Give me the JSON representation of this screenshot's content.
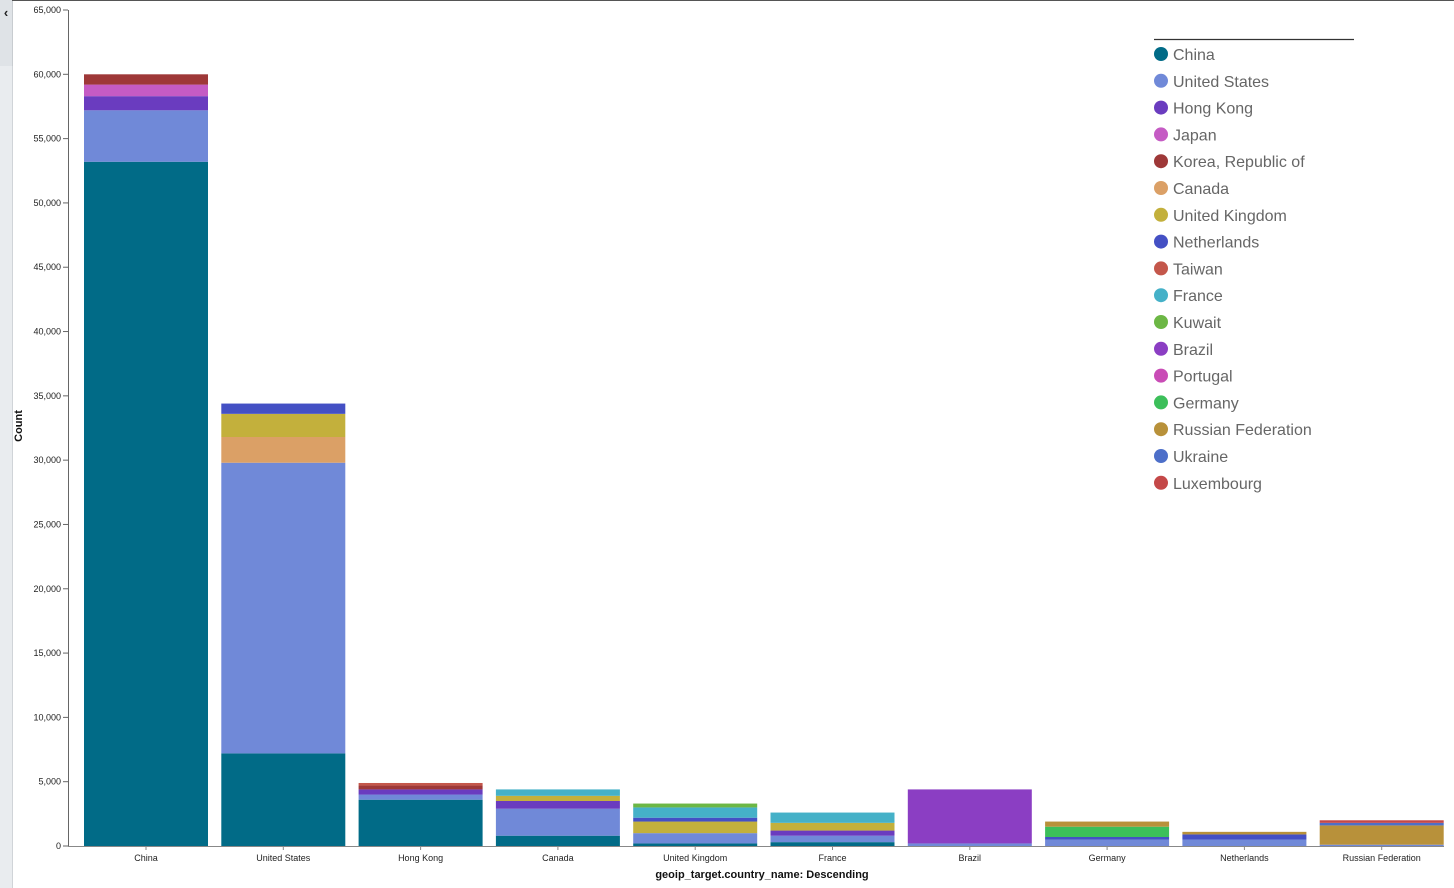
{
  "chart_data": {
    "type": "bar",
    "stacked": true,
    "xlabel": "geoip_target.country_name: Descending",
    "ylabel": "Count",
    "ylim": [
      0,
      65000
    ],
    "yticks": [
      0,
      5000,
      10000,
      15000,
      20000,
      25000,
      30000,
      35000,
      40000,
      45000,
      50000,
      55000,
      60000,
      65000
    ],
    "ytick_labels": [
      "0",
      "5,000",
      "10,000",
      "15,000",
      "20,000",
      "25,000",
      "30,000",
      "35,000",
      "40,000",
      "45,000",
      "50,000",
      "55,000",
      "60,000",
      "65,000"
    ],
    "grid": false,
    "legend_position": "top-right",
    "categories": [
      "China",
      "United States",
      "Hong Kong",
      "Canada",
      "United Kingdom",
      "France",
      "Brazil",
      "Germany",
      "Netherlands",
      "Russian Federation"
    ],
    "series": [
      {
        "name": "China",
        "color": "#016b87",
        "values": [
          53200,
          7200,
          3600,
          800,
          200,
          300,
          0,
          0,
          0,
          0
        ]
      },
      {
        "name": "United States",
        "color": "#7089d8",
        "values": [
          4000,
          22600,
          400,
          2100,
          800,
          500,
          200,
          500,
          500,
          100
        ]
      },
      {
        "name": "Hong Kong",
        "color": "#6a3cbf",
        "values": [
          1100,
          0,
          400,
          600,
          0,
          400,
          0,
          0,
          0,
          0
        ]
      },
      {
        "name": "Japan",
        "color": "#c55bc4",
        "values": [
          900,
          0,
          0,
          0,
          0,
          0,
          0,
          0,
          0,
          0
        ]
      },
      {
        "name": "Korea, Republic of",
        "color": "#9e3838",
        "values": [
          800,
          0,
          300,
          0,
          0,
          0,
          0,
          0,
          0,
          0
        ]
      },
      {
        "name": "Canada",
        "color": "#dba066",
        "values": [
          0,
          2000,
          0,
          0,
          0,
          0,
          0,
          0,
          0,
          0
        ]
      },
      {
        "name": "United Kingdom",
        "color": "#c3b03c",
        "values": [
          0,
          1800,
          0,
          400,
          900,
          600,
          0,
          0,
          0,
          0
        ]
      },
      {
        "name": "Netherlands",
        "color": "#4450c4",
        "values": [
          0,
          800,
          0,
          0,
          300,
          0,
          0,
          200,
          400,
          0
        ]
      },
      {
        "name": "Taiwan",
        "color": "#c4574b",
        "values": [
          0,
          0,
          200,
          0,
          0,
          0,
          0,
          0,
          0,
          0
        ]
      },
      {
        "name": "France",
        "color": "#45b1c8",
        "values": [
          0,
          0,
          0,
          500,
          800,
          800,
          0,
          0,
          0,
          0
        ]
      },
      {
        "name": "Kuwait",
        "color": "#6cb745",
        "values": [
          0,
          0,
          0,
          0,
          300,
          0,
          0,
          0,
          0,
          0
        ]
      },
      {
        "name": "Brazil",
        "color": "#8b3ec3",
        "values": [
          0,
          0,
          0,
          0,
          0,
          0,
          4200,
          0,
          0,
          0
        ]
      },
      {
        "name": "Portugal",
        "color": "#c94cb6",
        "values": [
          0,
          0,
          0,
          0,
          0,
          0,
          0,
          0,
          0,
          0
        ]
      },
      {
        "name": "Germany",
        "color": "#3cbf5a",
        "values": [
          0,
          0,
          0,
          0,
          0,
          0,
          0,
          800,
          0,
          0
        ]
      },
      {
        "name": "Russian Federation",
        "color": "#b8913a",
        "values": [
          0,
          0,
          0,
          0,
          0,
          0,
          0,
          400,
          200,
          1500
        ]
      },
      {
        "name": "Ukraine",
        "color": "#4d6fc9",
        "values": [
          0,
          0,
          0,
          0,
          0,
          0,
          0,
          0,
          0,
          200
        ]
      },
      {
        "name": "Luxembourg",
        "color": "#c44848",
        "values": [
          0,
          0,
          0,
          0,
          0,
          0,
          0,
          0,
          0,
          200
        ]
      }
    ]
  },
  "ui": {
    "collapse_icon": "chevron-left-icon",
    "collapse_glyph": "‹"
  }
}
